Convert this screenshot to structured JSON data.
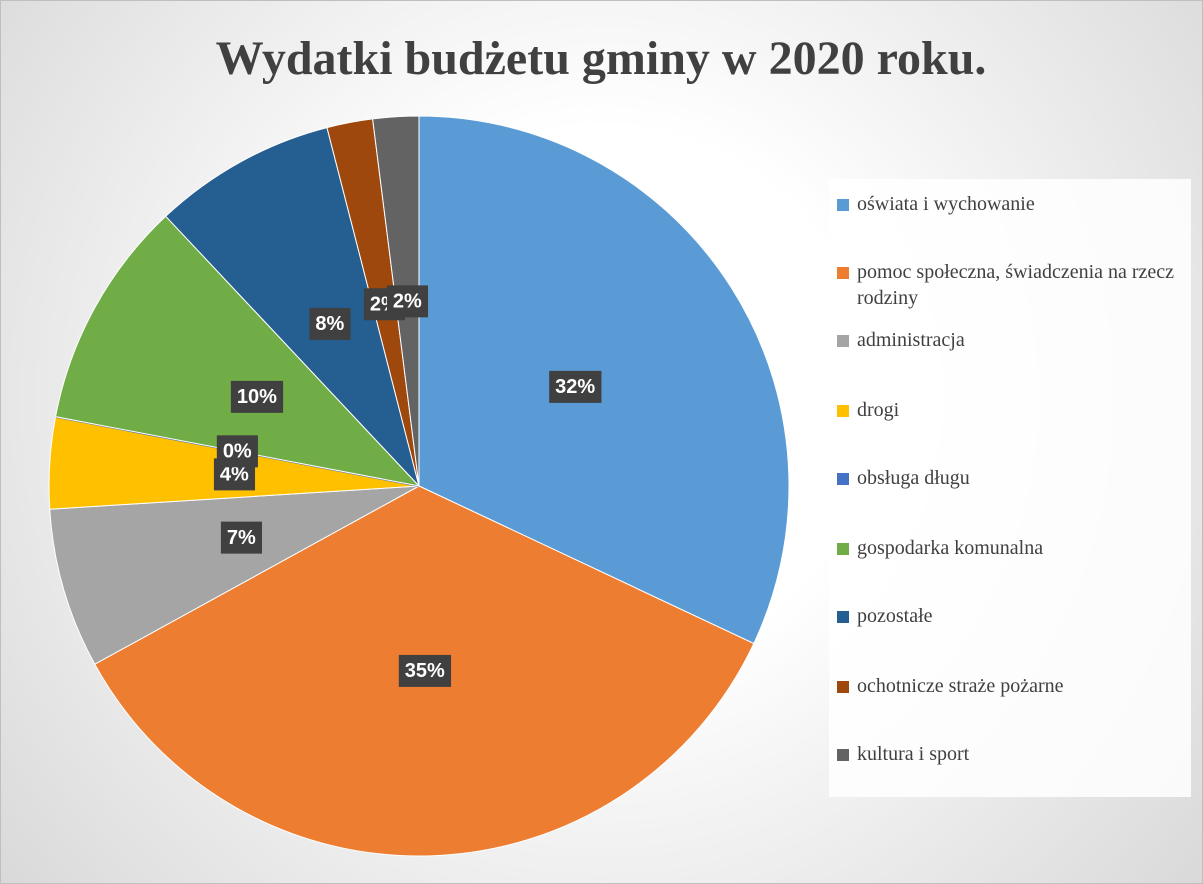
{
  "chart_data": {
    "type": "pie",
    "title": "Wydatki budżetu gminy w 2020 roku.",
    "categories": [
      "oświata i wychowanie",
      "pomoc społeczna, świadczenia na rzecz rodziny",
      "administracja",
      "drogi",
      "obsługa długu",
      "gospodarka komunalna",
      "pozostałe",
      "ochotnicze straże pożarne",
      "kultura i sport"
    ],
    "values": [
      32,
      35,
      7,
      4,
      0,
      10,
      8,
      2,
      2
    ],
    "value_labels": [
      "32%",
      "35%",
      "7%",
      "4%",
      "0%",
      "10%",
      "8%",
      "2%",
      "2%"
    ],
    "colors": [
      "#5b9bd5",
      "#ed7d31",
      "#a5a5a5",
      "#ffc000",
      "#4472c4",
      "#70ad47",
      "#255e91",
      "#9e480e",
      "#636363"
    ],
    "legend": "right"
  }
}
